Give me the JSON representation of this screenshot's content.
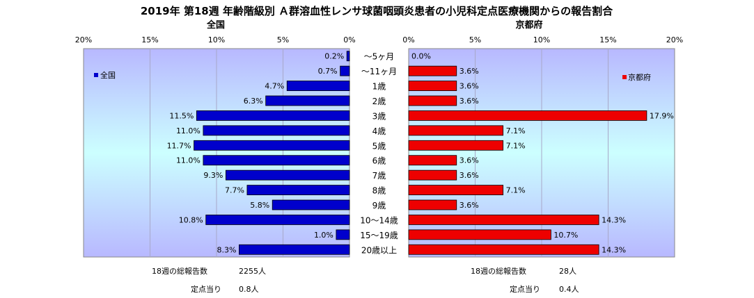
{
  "title": "2019年 第18週 年齢階級別 Ａ群溶血性レンサ球菌咽頭炎患者の小児科定点医療機関からの報告割合",
  "colors": {
    "national": "#0000cc",
    "kyoto": "#ee0000"
  },
  "chart_data": [
    {
      "type": "bar",
      "orientation": "horizontal",
      "direction": "right-to-left",
      "title": "全国",
      "legend": "全国",
      "legend_position": "top-left",
      "xlim": [
        0,
        20
      ],
      "ticks": [
        "20%",
        "15%",
        "10%",
        "5%",
        "0%"
      ],
      "categories": [
        "〜5ヶ月",
        "〜11ヶ月",
        "1歳",
        "2歳",
        "3歳",
        "4歳",
        "5歳",
        "6歳",
        "7歳",
        "8歳",
        "9歳",
        "10〜14歳",
        "15〜19歳",
        "20歳以上"
      ],
      "values": [
        0.2,
        0.7,
        4.7,
        6.3,
        11.5,
        11.0,
        11.7,
        11.0,
        9.3,
        7.7,
        5.8,
        10.8,
        1.0,
        8.3
      ],
      "labels": [
        "0.2%",
        "0.7%",
        "4.7%",
        "6.3%",
        "11.5%",
        "11.0%",
        "11.7%",
        "11.0%",
        "9.3%",
        "7.7%",
        "5.8%",
        "10.8%",
        "1.0%",
        "8.3%"
      ],
      "footer": {
        "total_label": "18週の総報告数",
        "total_value": "2255人",
        "per_label": "定点当り",
        "per_value": "0.8人"
      }
    },
    {
      "type": "bar",
      "orientation": "horizontal",
      "title": "京都府",
      "legend": "京都府",
      "legend_position": "top-right",
      "xlim": [
        0,
        20
      ],
      "ticks": [
        "0%",
        "5%",
        "10%",
        "15%",
        "20%"
      ],
      "categories": [
        "〜5ヶ月",
        "〜11ヶ月",
        "1歳",
        "2歳",
        "3歳",
        "4歳",
        "5歳",
        "6歳",
        "7歳",
        "8歳",
        "9歳",
        "10〜14歳",
        "15〜19歳",
        "20歳以上"
      ],
      "values": [
        0.0,
        3.6,
        3.6,
        3.6,
        17.9,
        7.1,
        7.1,
        3.6,
        3.6,
        7.1,
        3.6,
        14.3,
        10.7,
        14.3
      ],
      "labels": [
        "0.0%",
        "3.6%",
        "3.6%",
        "3.6%",
        "17.9%",
        "7.1%",
        "7.1%",
        "3.6%",
        "3.6%",
        "7.1%",
        "3.6%",
        "14.3%",
        "10.7%",
        "14.3%"
      ],
      "footer": {
        "total_label": "18週の総報告数",
        "total_value": "28人",
        "per_label": "定点当り",
        "per_value": "0.4人"
      }
    }
  ]
}
